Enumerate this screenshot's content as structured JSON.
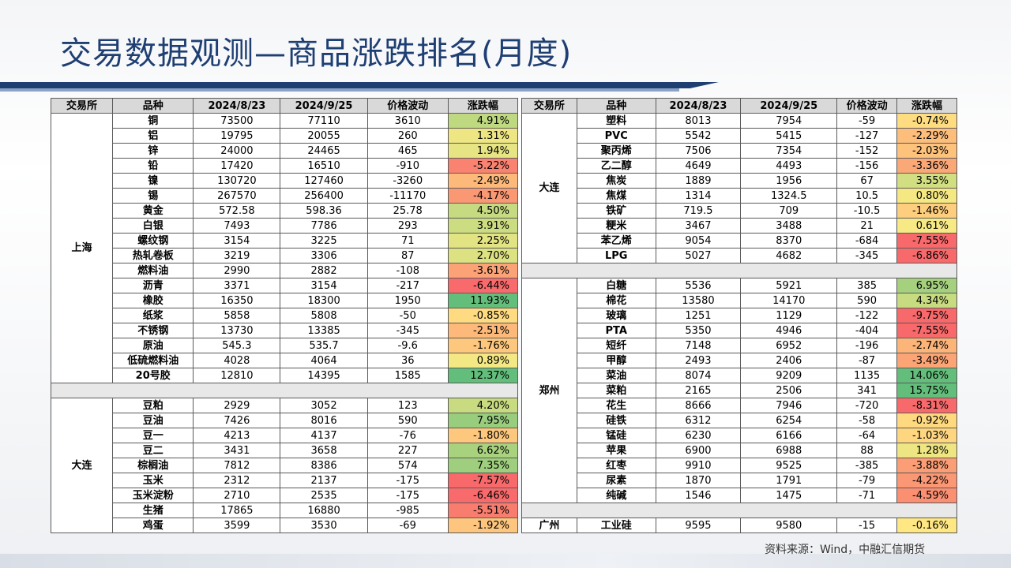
{
  "title": "交易数据观测—商品涨跌排名(月度)",
  "source": "资料来源：Wind，中融汇信期货",
  "headers": [
    "交易所",
    "品种",
    "2024/8/23",
    "2024/9/25",
    "价格波动",
    "涨跌幅"
  ],
  "colors": {
    "title": "#1f3f73",
    "header_bg": "#d9d9d9",
    "positive_strong": "#63be7b",
    "negative_strong": "#f8696b",
    "neutral": "#ffeb84"
  },
  "left": {
    "sections": [
      {
        "exchange": "上海",
        "rows": [
          {
            "name": "铜",
            "d1": "73500",
            "d2": "77110",
            "chg": "3610",
            "pct": "4.91%",
            "p": 4.91
          },
          {
            "name": "铝",
            "d1": "19795",
            "d2": "20055",
            "chg": "260",
            "pct": "1.31%",
            "p": 1.31
          },
          {
            "name": "锌",
            "d1": "24000",
            "d2": "24465",
            "chg": "465",
            "pct": "1.94%",
            "p": 1.94
          },
          {
            "name": "铅",
            "d1": "17420",
            "d2": "16510",
            "chg": "-910",
            "pct": "-5.22%",
            "p": -5.22
          },
          {
            "name": "镍",
            "d1": "130720",
            "d2": "127460",
            "chg": "-3260",
            "pct": "-2.49%",
            "p": -2.49
          },
          {
            "name": "锡",
            "d1": "267570",
            "d2": "256400",
            "chg": "-11170",
            "pct": "-4.17%",
            "p": -4.17
          },
          {
            "name": "黄金",
            "d1": "572.58",
            "d2": "598.36",
            "chg": "25.78",
            "pct": "4.50%",
            "p": 4.5
          },
          {
            "name": "白银",
            "d1": "7493",
            "d2": "7786",
            "chg": "293",
            "pct": "3.91%",
            "p": 3.91
          },
          {
            "name": "螺纹钢",
            "d1": "3154",
            "d2": "3225",
            "chg": "71",
            "pct": "2.25%",
            "p": 2.25
          },
          {
            "name": "热轧卷板",
            "d1": "3219",
            "d2": "3306",
            "chg": "87",
            "pct": "2.70%",
            "p": 2.7
          },
          {
            "name": "燃料油",
            "d1": "2990",
            "d2": "2882",
            "chg": "-108",
            "pct": "-3.61%",
            "p": -3.61
          },
          {
            "name": "沥青",
            "d1": "3371",
            "d2": "3154",
            "chg": "-217",
            "pct": "-6.44%",
            "p": -6.44
          },
          {
            "name": "橡胶",
            "d1": "16350",
            "d2": "18300",
            "chg": "1950",
            "pct": "11.93%",
            "p": 11.93
          },
          {
            "name": "纸浆",
            "d1": "5858",
            "d2": "5808",
            "chg": "-50",
            "pct": "-0.85%",
            "p": -0.85
          },
          {
            "name": "不锈钢",
            "d1": "13730",
            "d2": "13385",
            "chg": "-345",
            "pct": "-2.51%",
            "p": -2.51
          },
          {
            "name": "原油",
            "d1": "545.3",
            "d2": "535.7",
            "chg": "-9.6",
            "pct": "-1.76%",
            "p": -1.76
          },
          {
            "name": "低硫燃料油",
            "d1": "4028",
            "d2": "4064",
            "chg": "36",
            "pct": "0.89%",
            "p": 0.89
          },
          {
            "name": "20号胶",
            "d1": "12810",
            "d2": "14395",
            "chg": "1585",
            "pct": "12.37%",
            "p": 12.37
          }
        ]
      },
      {
        "exchange": "大连",
        "rows": [
          {
            "name": "豆粕",
            "d1": "2929",
            "d2": "3052",
            "chg": "123",
            "pct": "4.20%",
            "p": 4.2
          },
          {
            "name": "豆油",
            "d1": "7426",
            "d2": "8016",
            "chg": "590",
            "pct": "7.95%",
            "p": 7.95
          },
          {
            "name": "豆一",
            "d1": "4213",
            "d2": "4137",
            "chg": "-76",
            "pct": "-1.80%",
            "p": -1.8
          },
          {
            "name": "豆二",
            "d1": "3431",
            "d2": "3658",
            "chg": "227",
            "pct": "6.62%",
            "p": 6.62
          },
          {
            "name": "棕榈油",
            "d1": "7812",
            "d2": "8386",
            "chg": "574",
            "pct": "7.35%",
            "p": 7.35
          },
          {
            "name": "玉米",
            "d1": "2312",
            "d2": "2137",
            "chg": "-175",
            "pct": "-7.57%",
            "p": -7.57
          },
          {
            "name": "玉米淀粉",
            "d1": "2710",
            "d2": "2535",
            "chg": "-175",
            "pct": "-6.46%",
            "p": -6.46
          },
          {
            "name": "生猪",
            "d1": "17865",
            "d2": "16880",
            "chg": "-985",
            "pct": "-5.51%",
            "p": -5.51
          },
          {
            "name": "鸡蛋",
            "d1": "3599",
            "d2": "3530",
            "chg": "-69",
            "pct": "-1.92%",
            "p": -1.92
          }
        ]
      }
    ]
  },
  "right": {
    "sections": [
      {
        "exchange": "大连",
        "rows": [
          {
            "name": "塑料",
            "d1": "8013",
            "d2": "7954",
            "chg": "-59",
            "pct": "-0.74%",
            "p": -0.74
          },
          {
            "name": "PVC",
            "d1": "5542",
            "d2": "5415",
            "chg": "-127",
            "pct": "-2.29%",
            "p": -2.29
          },
          {
            "name": "聚丙烯",
            "d1": "7506",
            "d2": "7354",
            "chg": "-152",
            "pct": "-2.03%",
            "p": -2.03
          },
          {
            "name": "乙二醇",
            "d1": "4649",
            "d2": "4493",
            "chg": "-156",
            "pct": "-3.36%",
            "p": -3.36
          },
          {
            "name": "焦炭",
            "d1": "1889",
            "d2": "1956",
            "chg": "67",
            "pct": "3.55%",
            "p": 3.55
          },
          {
            "name": "焦煤",
            "d1": "1314",
            "d2": "1324.5",
            "chg": "10.5",
            "pct": "0.80%",
            "p": 0.8
          },
          {
            "name": "铁矿",
            "d1": "719.5",
            "d2": "709",
            "chg": "-10.5",
            "pct": "-1.46%",
            "p": -1.46
          },
          {
            "name": "粳米",
            "d1": "3467",
            "d2": "3488",
            "chg": "21",
            "pct": "0.61%",
            "p": 0.61
          },
          {
            "name": "苯乙烯",
            "d1": "9054",
            "d2": "8370",
            "chg": "-684",
            "pct": "-7.55%",
            "p": -7.55
          },
          {
            "name": "LPG",
            "d1": "5027",
            "d2": "4682",
            "chg": "-345",
            "pct": "-6.86%",
            "p": -6.86
          }
        ]
      },
      {
        "exchange": "郑州",
        "rows": [
          {
            "name": "白糖",
            "d1": "5536",
            "d2": "5921",
            "chg": "385",
            "pct": "6.95%",
            "p": 6.95
          },
          {
            "name": "棉花",
            "d1": "13580",
            "d2": "14170",
            "chg": "590",
            "pct": "4.34%",
            "p": 4.34
          },
          {
            "name": "玻璃",
            "d1": "1251",
            "d2": "1129",
            "chg": "-122",
            "pct": "-9.75%",
            "p": -9.75
          },
          {
            "name": "PTA",
            "d1": "5350",
            "d2": "4946",
            "chg": "-404",
            "pct": "-7.55%",
            "p": -7.55
          },
          {
            "name": "短纤",
            "d1": "7148",
            "d2": "6952",
            "chg": "-196",
            "pct": "-2.74%",
            "p": -2.74
          },
          {
            "name": "甲醇",
            "d1": "2493",
            "d2": "2406",
            "chg": "-87",
            "pct": "-3.49%",
            "p": -3.49
          },
          {
            "name": "菜油",
            "d1": "8074",
            "d2": "9209",
            "chg": "1135",
            "pct": "14.06%",
            "p": 14.06
          },
          {
            "name": "菜粕",
            "d1": "2165",
            "d2": "2506",
            "chg": "341",
            "pct": "15.75%",
            "p": 15.75
          },
          {
            "name": "花生",
            "d1": "8666",
            "d2": "7946",
            "chg": "-720",
            "pct": "-8.31%",
            "p": -8.31
          },
          {
            "name": "硅铁",
            "d1": "6312",
            "d2": "6254",
            "chg": "-58",
            "pct": "-0.92%",
            "p": -0.92
          },
          {
            "name": "锰硅",
            "d1": "6230",
            "d2": "6166",
            "chg": "-64",
            "pct": "-1.03%",
            "p": -1.03
          },
          {
            "name": "苹果",
            "d1": "6900",
            "d2": "6988",
            "chg": "88",
            "pct": "1.28%",
            "p": 1.28
          },
          {
            "name": "红枣",
            "d1": "9910",
            "d2": "9525",
            "chg": "-385",
            "pct": "-3.88%",
            "p": -3.88
          },
          {
            "name": "尿素",
            "d1": "1870",
            "d2": "1791",
            "chg": "-79",
            "pct": "-4.22%",
            "p": -4.22
          },
          {
            "name": "纯碱",
            "d1": "1546",
            "d2": "1475",
            "chg": "-71",
            "pct": "-4.59%",
            "p": -4.59
          }
        ]
      },
      {
        "exchange": "广州",
        "rows": [
          {
            "name": "工业硅",
            "d1": "9595",
            "d2": "9580",
            "chg": "-15",
            "pct": "-0.16%",
            "p": -0.16
          }
        ]
      }
    ]
  }
}
